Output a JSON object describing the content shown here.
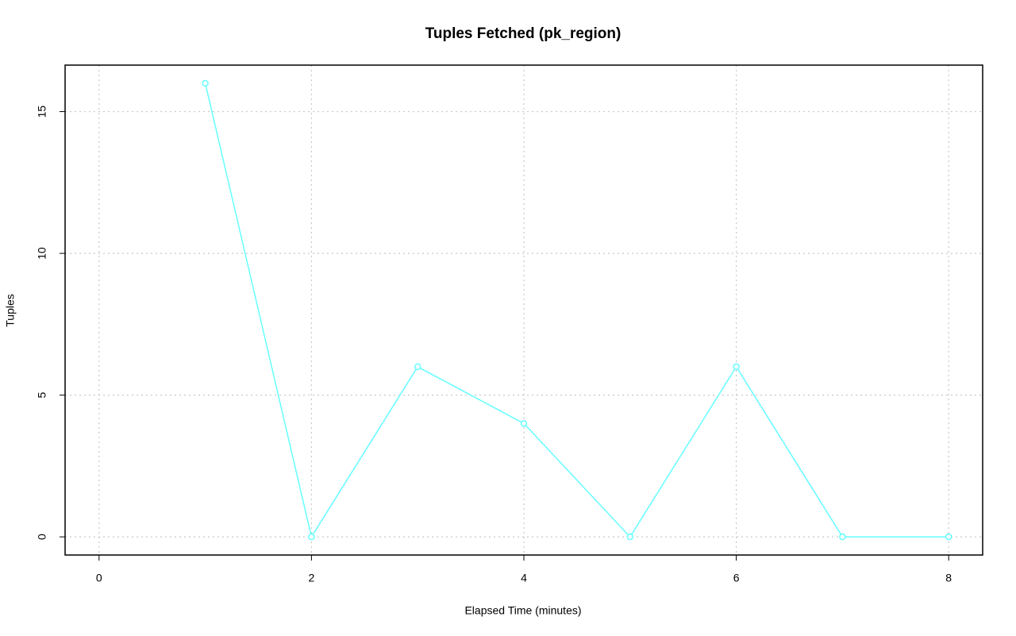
{
  "chart_data": {
    "type": "line",
    "title": "Tuples Fetched (pk_region)",
    "x_label": "Elapsed Time (minutes)",
    "y_label": "Tuples",
    "x": [
      1,
      2,
      3,
      4,
      5,
      6,
      7,
      8
    ],
    "series": [
      {
        "color": "#66ffff",
        "values": [
          16,
          0,
          6,
          4,
          0,
          6,
          0,
          0
        ]
      }
    ],
    "xlim": [
      -0.32,
      8.32
    ],
    "xticks": [
      0,
      2,
      4,
      6,
      8
    ],
    "ylim": [
      -0.64,
      16.64
    ],
    "yticks": [
      0,
      5,
      10,
      15
    ],
    "grid": true
  }
}
